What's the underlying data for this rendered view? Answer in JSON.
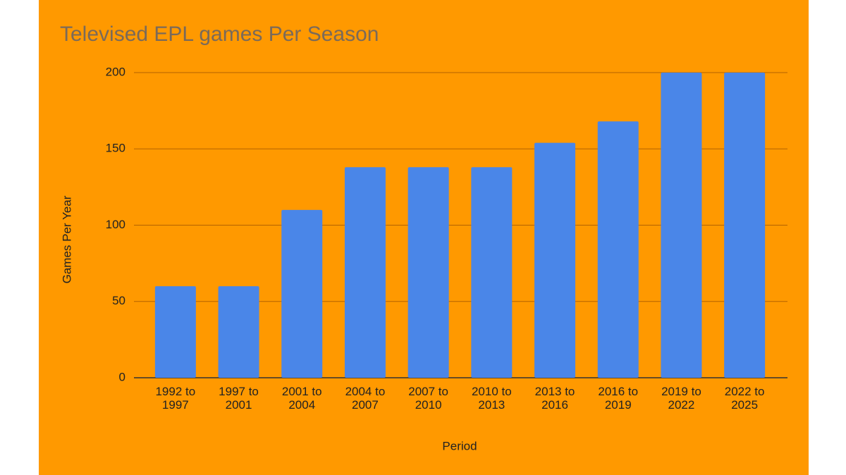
{
  "chart_data": {
    "type": "bar",
    "title": "Televised EPL games Per Season",
    "x_label": "Period",
    "y_label": "Games Per Year",
    "categories": [
      "1992 to 1997",
      "1997 to 2001",
      "2001 to 2004",
      "2004 to 2007",
      "2007 to 2010",
      "2010 to 2013",
      "2013 to 2016",
      "2016 to 2019",
      "2019 to 2022",
      "2022 to 2025"
    ],
    "values": [
      60,
      60,
      110,
      138,
      138,
      138,
      154,
      168,
      200,
      200
    ],
    "color": "#4a86e8",
    "ylim": [
      0,
      200
    ],
    "yticks": [
      0,
      50,
      100,
      150,
      200
    ],
    "grid": true
  }
}
